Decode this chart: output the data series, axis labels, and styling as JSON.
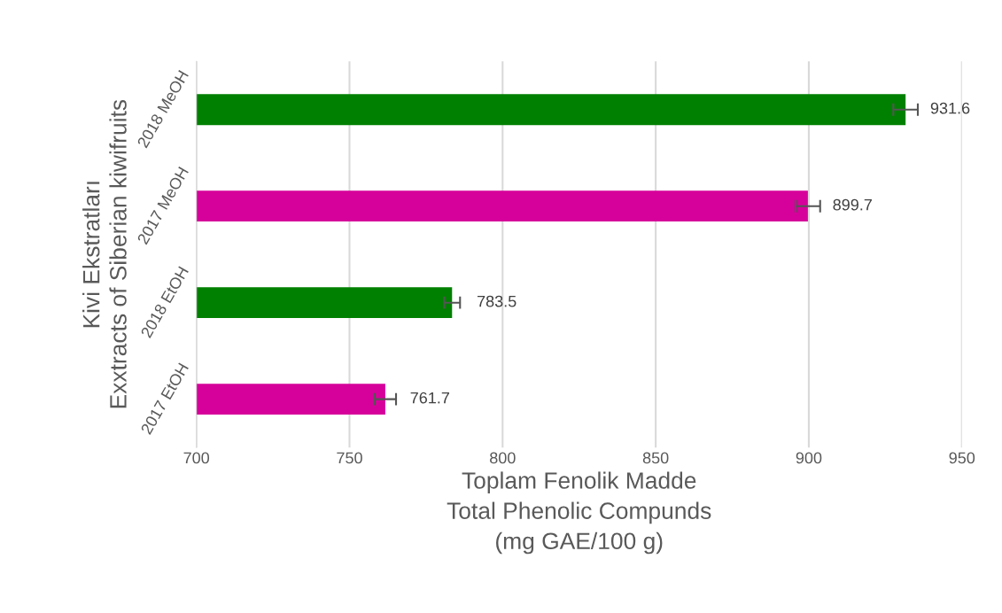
{
  "chart_data": {
    "type": "bar",
    "orientation": "horizontal",
    "categories": [
      "2018 MeOH",
      "2017 MeOH",
      "2018 EtOH",
      "2017 EtOH"
    ],
    "values": [
      931.6,
      899.7,
      783.5,
      761.7
    ],
    "colors": [
      "#008000",
      "#d6009a",
      "#008000",
      "#d6009a"
    ],
    "errors": [
      4,
      4,
      2.6,
      3.5
    ],
    "data_labels": true,
    "xlim": [
      700,
      950
    ],
    "xticks": [
      700,
      750,
      800,
      850,
      900,
      950
    ],
    "xlabel": "Toplam Fenolik Madde\nTotal Phenolic Compunds\n(mg GAE/100 g)",
    "ylabel": "Kivi Ekstratları\nExxtracts of Siberian kiwifruits",
    "grid": "x",
    "legend": false
  }
}
